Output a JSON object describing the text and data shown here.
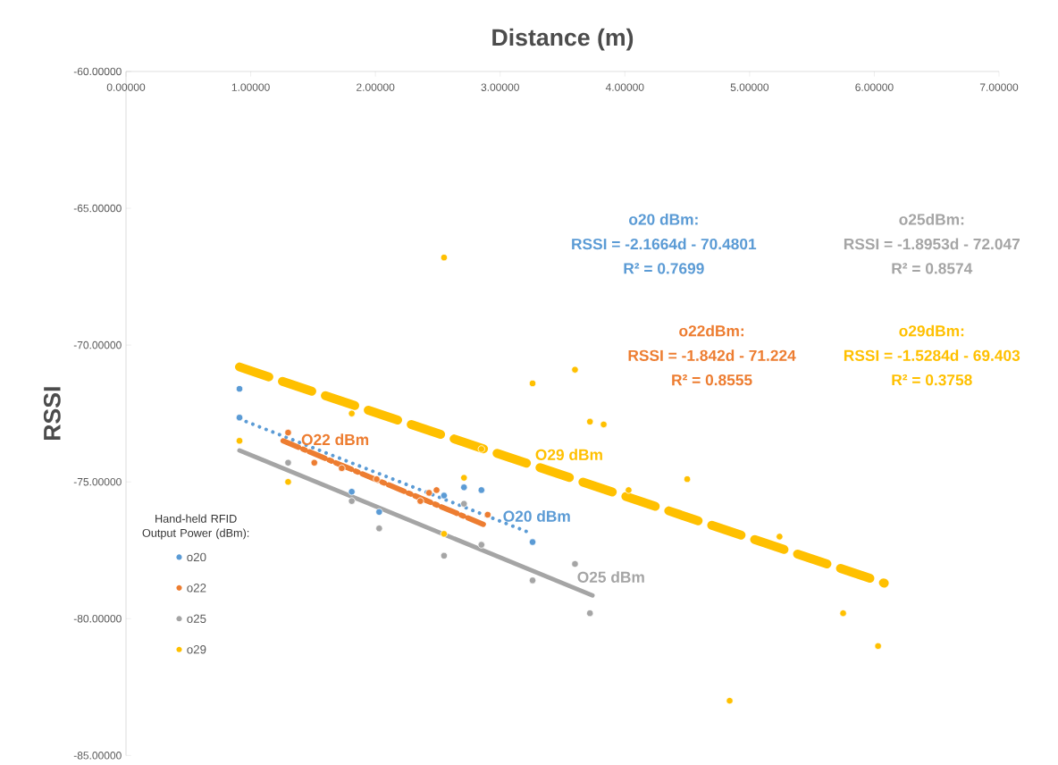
{
  "chart_data": {
    "type": "scatter",
    "xlabel": "Distance (m)",
    "ylabel": "RSSI",
    "legend_title": "Hand-held RFID Output Power (dBm):",
    "legend": "bottom left",
    "grid": false,
    "xlim": [
      0,
      7
    ],
    "ylim": [
      -85,
      -60
    ],
    "xticks": [
      {
        "value": 0,
        "label": "0.00000"
      },
      {
        "value": 1,
        "label": "1.00000"
      },
      {
        "value": 2,
        "label": "2.00000"
      },
      {
        "value": 3,
        "label": "3.00000"
      },
      {
        "value": 4,
        "label": "4.00000"
      },
      {
        "value": 5,
        "label": "5.00000"
      },
      {
        "value": 6,
        "label": "6.00000"
      },
      {
        "value": 7,
        "label": "7.00000"
      }
    ],
    "yticks": [
      {
        "value": -85,
        "label": "-85.00000"
      },
      {
        "value": -80,
        "label": "-80.00000"
      },
      {
        "value": -75,
        "label": "-75.00000"
      },
      {
        "value": -70,
        "label": "-70.00000"
      },
      {
        "value": -65,
        "label": "-65.00000"
      },
      {
        "value": -60,
        "label": "-60.00000"
      }
    ],
    "series": [
      {
        "name": "o20",
        "color": "#5b9bd5",
        "marker": "circle",
        "x": [
          0.91,
          0.91,
          1.81,
          2.03,
          2.55,
          2.71,
          2.85,
          3.26
        ],
        "values": [
          -71.6,
          -72.65,
          -75.36,
          -76.1,
          -75.5,
          -75.2,
          -75.3,
          -77.2
        ]
      },
      {
        "name": "o22",
        "color": "#ed7d31",
        "marker": "circle",
        "x": [
          1.3,
          1.51,
          1.73,
          2.01,
          2.36,
          2.43,
          2.49,
          2.9
        ],
        "values": [
          -73.2,
          -74.3,
          -74.5,
          -74.9,
          -75.7,
          -75.4,
          -75.3,
          -76.2
        ]
      },
      {
        "name": "o25",
        "color": "#a5a5a5",
        "marker": "circle",
        "x": [
          1.3,
          1.81,
          2.03,
          2.55,
          2.71,
          2.85,
          3.26,
          3.6,
          3.72
        ],
        "values": [
          -74.3,
          -75.7,
          -76.7,
          -77.7,
          -75.8,
          -77.3,
          -78.6,
          -78.0,
          -79.8
        ]
      },
      {
        "name": "o29",
        "color": "#ffc000",
        "marker": "circle",
        "x": [
          0.91,
          1.3,
          1.81,
          2.55,
          2.55,
          2.71,
          2.85,
          3.26,
          3.6,
          3.72,
          3.83,
          4.03,
          4.5,
          4.84,
          5.24,
          5.75,
          6.03
        ],
        "values": [
          -73.5,
          -75.0,
          -72.5,
          -66.8,
          -76.9,
          -74.85,
          -73.8,
          -71.4,
          -70.9,
          -72.8,
          -72.9,
          -75.3,
          -74.9,
          -83.0,
          -77.0,
          -79.8,
          -81.0
        ]
      },
      {
        "type": "line",
        "color": "#5b9bd5",
        "line_style": "dotted",
        "marker": "none",
        "x": [
          0.91,
          3.26
        ],
        "values": [
          -72.7,
          -76.9
        ]
      },
      {
        "type": "line",
        "color": "#ed7d31",
        "line_style": "dashed",
        "marker": "none",
        "x": [
          1.26,
          2.89
        ],
        "values": [
          -73.5,
          -76.6
        ]
      },
      {
        "type": "line",
        "color": "#a5a5a5",
        "line_style": "solid",
        "marker": "none",
        "x": [
          0.91,
          3.74
        ],
        "values": [
          -73.85,
          -79.15
        ]
      },
      {
        "type": "line",
        "color": "#ffc000",
        "line_style": "dashed",
        "marker": "none",
        "x": [
          0.91,
          6.08
        ],
        "values": [
          -70.8,
          -78.7
        ]
      }
    ],
    "annotations": [
      "O22 dBm",
      "O20 dBm",
      "O25 dBm",
      "O29 dBm",
      "o20 dBm:",
      "RSSI = -2.1664d - 70.4801",
      "R² = 0.7699",
      "o25dBm:",
      "RSSI = -1.8953d - 72.047",
      "R² = 0.8574",
      "o22dBm:",
      "RSSI = -1.842d - 71.224",
      "R² = 0.8555",
      "o29dBm:",
      "RSSI = -1.5284d - 69.403",
      "R² = 0.3758"
    ]
  }
}
